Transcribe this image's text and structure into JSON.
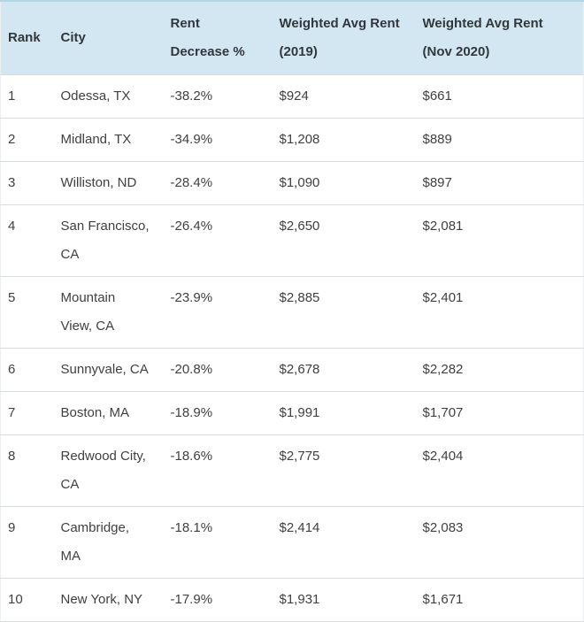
{
  "table": {
    "name": "city-rent-decrease-ranking",
    "columns": [
      "Rank",
      "City",
      "Rent\nDecrease %",
      "Weighted Avg Rent\n(2019)",
      "Weighted Avg Rent\n(Nov 2020)"
    ],
    "rows": [
      {
        "rank": "1",
        "city": "Odessa, TX",
        "decrease": "-38.2%",
        "rent_2019": "$924",
        "rent_2020": "$661"
      },
      {
        "rank": "2",
        "city": "Midland, TX",
        "decrease": "-34.9%",
        "rent_2019": "$1,208",
        "rent_2020": "$889"
      },
      {
        "rank": "3",
        "city": "Williston, ND",
        "decrease": "-28.4%",
        "rent_2019": "$1,090",
        "rent_2020": "$897"
      },
      {
        "rank": "4",
        "city": "San Francisco, CA",
        "decrease": "-26.4%",
        "rent_2019": "$2,650",
        "rent_2020": "$2,081"
      },
      {
        "rank": "5",
        "city": "Mountain View, CA",
        "decrease": "-23.9%",
        "rent_2019": "$2,885",
        "rent_2020": "$2,401"
      },
      {
        "rank": "6",
        "city": "Sunnyvale, CA",
        "decrease": "-20.8%",
        "rent_2019": "$2,678",
        "rent_2020": "$2,282"
      },
      {
        "rank": "7",
        "city": "Boston, MA",
        "decrease": "-18.9%",
        "rent_2019": "$1,991",
        "rent_2020": "$1,707"
      },
      {
        "rank": "8",
        "city": "Redwood City, CA",
        "decrease": "-18.6%",
        "rent_2019": "$2,775",
        "rent_2020": "$2,404"
      },
      {
        "rank": "9",
        "city": "Cambridge, MA",
        "decrease": "-18.1%",
        "rent_2019": "$2,414",
        "rent_2020": "$2,083"
      },
      {
        "rank": "10",
        "city": "New York, NY",
        "decrease": "-17.9%",
        "rent_2019": "$1,931",
        "rent_2020": "$1,671"
      }
    ]
  },
  "colors": {
    "header_bg": "#d2e7f1",
    "header_top_border": "#b3d6e6",
    "row_separator": "#dadddf",
    "header_text": "#32373c",
    "body_text": "#404040"
  }
}
